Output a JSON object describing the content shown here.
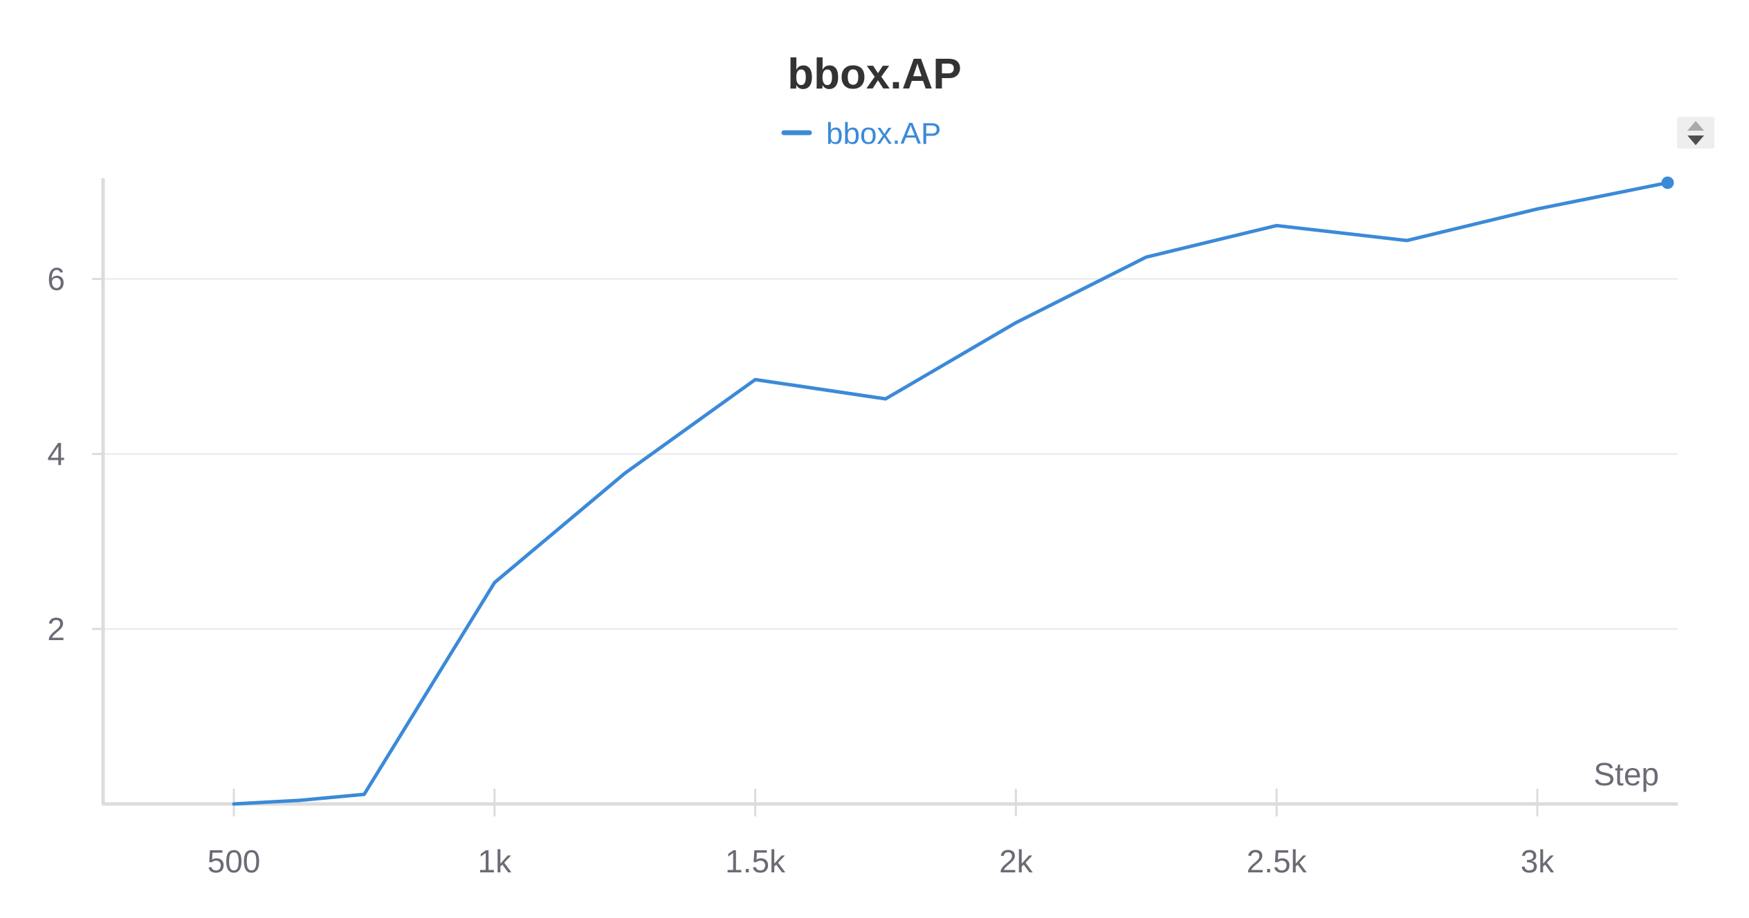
{
  "chart_data": {
    "type": "line",
    "title": "bbox.AP",
    "xlabel": "Step",
    "ylabel": "",
    "xlim": [
      0,
      3300
    ],
    "ylim": [
      0,
      7.15
    ],
    "grid": true,
    "legend_position": "top-center",
    "x_ticks": [
      {
        "value": 500,
        "label": "500"
      },
      {
        "value": 1000,
        "label": "1k"
      },
      {
        "value": 1500,
        "label": "1.5k"
      },
      {
        "value": 2000,
        "label": "2k"
      },
      {
        "value": 2500,
        "label": "2.5k"
      },
      {
        "value": 3000,
        "label": "3k"
      }
    ],
    "y_ticks": [
      {
        "value": 2,
        "label": "2"
      },
      {
        "value": 4,
        "label": "4"
      },
      {
        "value": 6,
        "label": "6"
      }
    ],
    "series": [
      {
        "name": "bbox.AP",
        "color": "#3b8ad8",
        "x": [
          500,
          625,
          750,
          1000,
          1250,
          1500,
          1750,
          2000,
          2250,
          2500,
          2750,
          3000,
          3250
        ],
        "values": [
          0.0,
          0.04,
          0.11,
          2.53,
          3.78,
          4.85,
          4.63,
          5.5,
          6.25,
          6.61,
          6.44,
          6.8,
          7.1
        ]
      }
    ]
  },
  "legend_scroll": {
    "up_icon": "triangle-up-icon",
    "down_icon": "triangle-down-icon"
  }
}
